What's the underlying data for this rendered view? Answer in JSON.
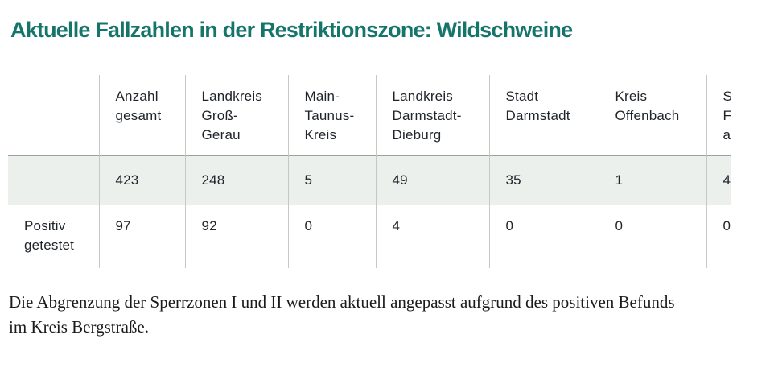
{
  "title": "Aktuelle Fallzahlen in der Restriktionszone: Wildschweine",
  "table": {
    "columns": [
      "",
      "Anzahl\ngesamt",
      "Landkreis\nGroß-\nGerau",
      "Main-\nTaunus-\nKreis",
      "Landkreis\nDarmstadt-\nDieburg",
      "Stadt\nDarmstadt",
      "Kreis\nOffenbach",
      "S\nF\na"
    ],
    "rows": [
      {
        "label": "",
        "values": [
          "423",
          "248",
          "5",
          "49",
          "35",
          "1",
          "4"
        ]
      },
      {
        "label": "Positiv\ngetestet",
        "values": [
          "97",
          "92",
          "0",
          "4",
          "0",
          "0",
          "0"
        ]
      }
    ]
  },
  "footer": {
    "lines": [
      "Die Abgrenzung der Sperrzonen I und II werden aktuell angepasst aufgrund des positiven Befunds",
      "im Kreis Bergstraße."
    ]
  },
  "colors": {
    "title_accent": "#16756b",
    "row_highlight": "#ebf0ec",
    "border_vertical": "#c4c9c5",
    "border_horizontal": "#9ca29e",
    "table_text": "#20252b"
  }
}
